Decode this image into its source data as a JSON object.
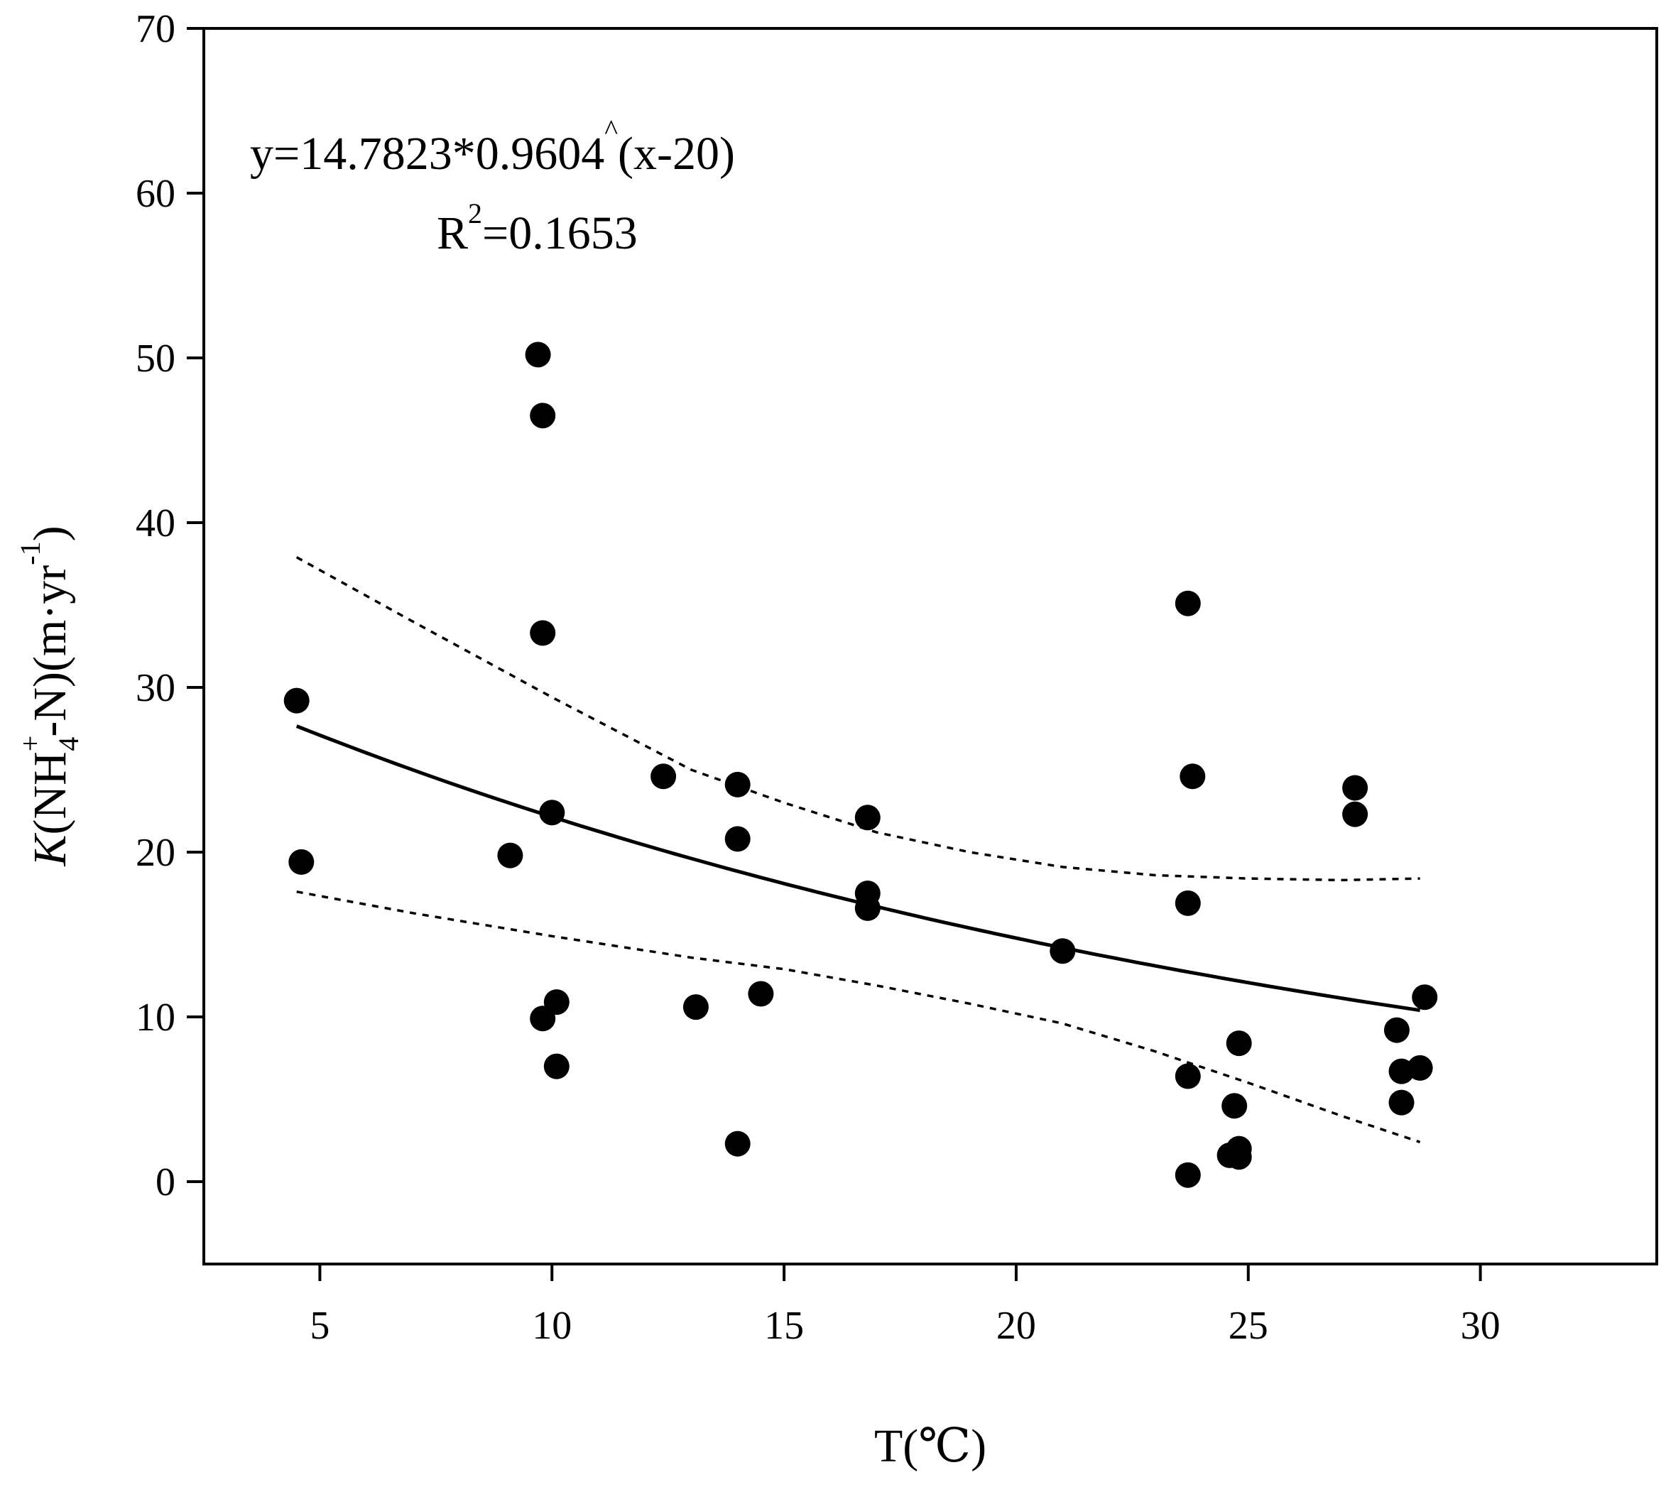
{
  "chart_data": {
    "type": "scatter",
    "title": "",
    "xlabel": "T(℃)",
    "ylabel": {
      "k": "K",
      "open": "(NH",
      "plus": "+",
      "sub": "4",
      "mid": "-N)(m·yr",
      "exp": "-1",
      "close": ")"
    },
    "xlim": [
      2.5,
      33.8
    ],
    "ylim": [
      -5,
      70
    ],
    "xticks": [
      5,
      10,
      15,
      20,
      25,
      30
    ],
    "yticks": [
      0,
      10,
      20,
      30,
      40,
      50,
      60,
      70
    ],
    "equation": {
      "text": "y=14.7823*0.9604",
      "caret": "^",
      "tail": "(x-20)",
      "r2_prefix": "R",
      "r2_sup": "2",
      "r2_value": "=0.1653"
    },
    "fit": {
      "a": 14.7823,
      "b": 0.9604,
      "x0": 20,
      "xrange": [
        4.5,
        28.7
      ]
    },
    "confidence_band": {
      "upper": [
        [
          4.5,
          37.9
        ],
        [
          7,
          34.0
        ],
        [
          10,
          29.4
        ],
        [
          13,
          25.0
        ],
        [
          15,
          23.0
        ],
        [
          17,
          21.2
        ],
        [
          19,
          20.0
        ],
        [
          21,
          19.1
        ],
        [
          23,
          18.6
        ],
        [
          25,
          18.4
        ],
        [
          27,
          18.3
        ],
        [
          28.7,
          18.4
        ]
      ],
      "lower": [
        [
          4.5,
          17.6
        ],
        [
          7,
          16.3
        ],
        [
          10,
          14.9
        ],
        [
          13,
          13.6
        ],
        [
          15,
          12.9
        ],
        [
          17,
          11.9
        ],
        [
          19,
          10.8
        ],
        [
          21,
          9.6
        ],
        [
          23,
          7.9
        ],
        [
          25,
          6.0
        ],
        [
          27,
          4.0
        ],
        [
          28.7,
          2.4
        ]
      ]
    },
    "points": [
      [
        4.5,
        29.2
      ],
      [
        4.6,
        19.4
      ],
      [
        9.1,
        19.8
      ],
      [
        9.7,
        50.2
      ],
      [
        9.8,
        46.5
      ],
      [
        9.8,
        33.3
      ],
      [
        9.8,
        9.9
      ],
      [
        10.0,
        22.4
      ],
      [
        10.1,
        10.9
      ],
      [
        10.1,
        7.0
      ],
      [
        12.4,
        24.6
      ],
      [
        13.1,
        10.6
      ],
      [
        14.0,
        24.1
      ],
      [
        14.0,
        20.8
      ],
      [
        14.0,
        2.3
      ],
      [
        14.5,
        11.4
      ],
      [
        16.8,
        22.1
      ],
      [
        16.8,
        17.5
      ],
      [
        16.8,
        16.6
      ],
      [
        21.0,
        14.0
      ],
      [
        23.7,
        35.1
      ],
      [
        23.7,
        16.9
      ],
      [
        23.7,
        6.4
      ],
      [
        23.7,
        0.4
      ],
      [
        23.8,
        24.6
      ],
      [
        24.6,
        1.6
      ],
      [
        24.7,
        4.6
      ],
      [
        24.8,
        8.4
      ],
      [
        24.8,
        2.0
      ],
      [
        24.8,
        1.5
      ],
      [
        27.3,
        23.9
      ],
      [
        27.3,
        22.3
      ],
      [
        28.2,
        9.2
      ],
      [
        28.3,
        6.7
      ],
      [
        28.3,
        4.8
      ],
      [
        28.7,
        6.9
      ],
      [
        28.8,
        11.2
      ]
    ]
  }
}
